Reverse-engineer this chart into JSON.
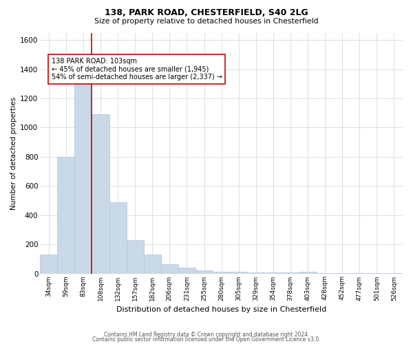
{
  "title1": "138, PARK ROAD, CHESTERFIELD, S40 2LG",
  "title2": "Size of property relative to detached houses in Chesterfield",
  "xlabel": "Distribution of detached houses by size in Chesterfield",
  "ylabel": "Number of detached properties",
  "categories": [
    "34sqm",
    "59sqm",
    "83sqm",
    "108sqm",
    "132sqm",
    "157sqm",
    "182sqm",
    "206sqm",
    "231sqm",
    "255sqm",
    "280sqm",
    "305sqm",
    "329sqm",
    "354sqm",
    "378sqm",
    "403sqm",
    "428sqm",
    "452sqm",
    "477sqm",
    "501sqm",
    "526sqm"
  ],
  "values": [
    130,
    800,
    1300,
    1090,
    490,
    230,
    130,
    65,
    38,
    22,
    14,
    14,
    8,
    8,
    8,
    14,
    3,
    3,
    3,
    3,
    3
  ],
  "bar_color": "#c9d9e8",
  "bar_edgecolor": "#b0c4d8",
  "vline_color": "#cc0000",
  "vline_x_index": 2,
  "annotation_line1": "138 PARK ROAD: 103sqm",
  "annotation_line2": "← 45% of detached houses are smaller (1,945)",
  "annotation_line3": "54% of semi-detached houses are larger (2,337) →",
  "annotation_box_color": "#ffffff",
  "annotation_box_edgecolor": "#cc0000",
  "ylim": [
    0,
    1650
  ],
  "yticks": [
    0,
    200,
    400,
    600,
    800,
    1000,
    1200,
    1400,
    1600
  ],
  "grid_color": "#d0d0d0",
  "background_color": "#ffffff",
  "footer1": "Contains HM Land Registry data © Crown copyright and database right 2024.",
  "footer2": "Contains public sector information licensed under the Open Government Licence v3.0."
}
